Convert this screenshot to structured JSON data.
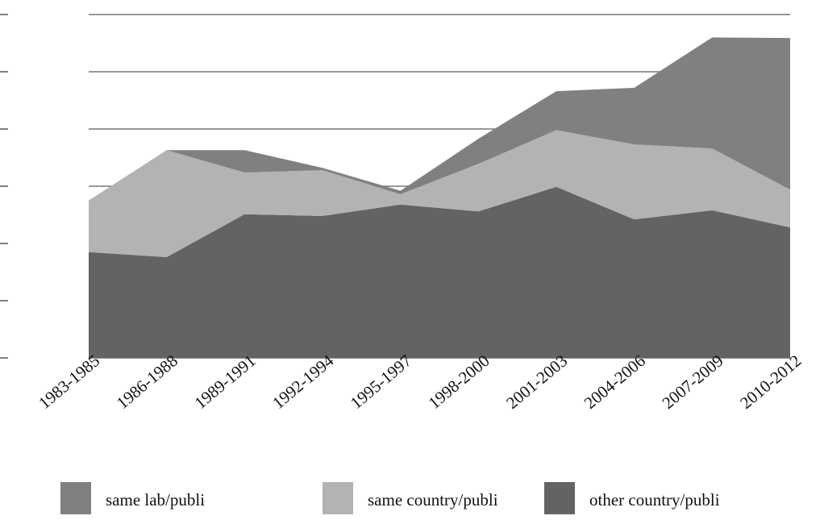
{
  "chart_data": {
    "type": "stacked-area",
    "categories": [
      "1983-1985",
      "1986-1988",
      "1989-1991",
      "1992-1994",
      "1995-1997",
      "1998-2000",
      "2001-2003",
      "2004-2006",
      "2007-2009",
      "2010-2012"
    ],
    "series": [
      {
        "name": "other country/publi",
        "color": "#636363",
        "values": [
          1.85,
          1.76,
          2.51,
          2.48,
          2.68,
          2.56,
          2.99,
          2.42,
          2.58,
          2.28
        ]
      },
      {
        "name": "same country/publi",
        "color": "#b3b3b3",
        "values": [
          0.9,
          1.87,
          0.73,
          0.8,
          0.18,
          0.83,
          0.99,
          1.31,
          1.08,
          0.66
        ]
      },
      {
        "name": "same lab/publi",
        "color": "#808080",
        "values": [
          0,
          0,
          0.39,
          0.04,
          0.06,
          0.44,
          0.68,
          0.99,
          1.94,
          2.65
        ]
      }
    ],
    "legend_order": [
      2,
      1,
      0
    ],
    "ylim": [
      0,
      6
    ],
    "yticks": [
      0,
      1,
      2,
      3,
      4,
      5,
      6
    ],
    "grid": true
  }
}
